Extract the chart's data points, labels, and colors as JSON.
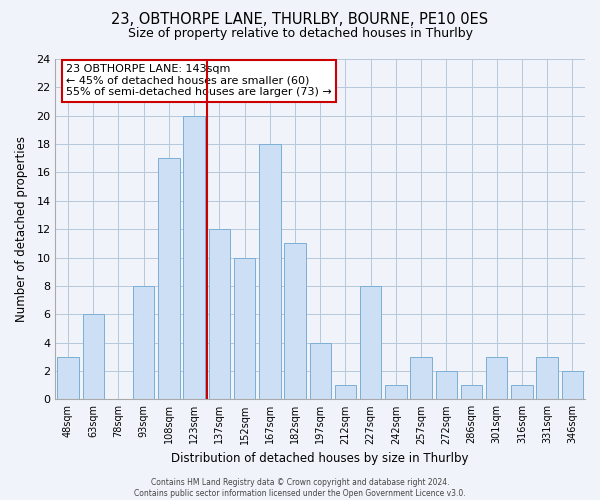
{
  "title": "23, OBTHORPE LANE, THURLBY, BOURNE, PE10 0ES",
  "subtitle": "Size of property relative to detached houses in Thurlby",
  "xlabel": "Distribution of detached houses by size in Thurlby",
  "ylabel": "Number of detached properties",
  "footer_lines": [
    "Contains HM Land Registry data © Crown copyright and database right 2024.",
    "Contains public sector information licensed under the Open Government Licence v3.0."
  ],
  "bar_labels": [
    "48sqm",
    "63sqm",
    "78sqm",
    "93sqm",
    "108sqm",
    "123sqm",
    "137sqm",
    "152sqm",
    "167sqm",
    "182sqm",
    "197sqm",
    "212sqm",
    "227sqm",
    "242sqm",
    "257sqm",
    "272sqm",
    "286sqm",
    "301sqm",
    "316sqm",
    "331sqm",
    "346sqm"
  ],
  "bar_values": [
    3,
    6,
    0,
    8,
    17,
    20,
    12,
    10,
    18,
    11,
    4,
    1,
    8,
    1,
    3,
    2,
    1,
    3,
    1,
    3,
    2
  ],
  "bar_color": "#ccdff5",
  "bar_edge_color": "#7bafd4",
  "grid_color": "#b8c8dc",
  "background_color": "#f0f4fa",
  "vline_x_index": 5,
  "vline_color": "#cc0000",
  "annotation_title": "23 OBTHORPE LANE: 143sqm",
  "annotation_line1": "← 45% of detached houses are smaller (60)",
  "annotation_line2": "55% of semi-detached houses are larger (73) →",
  "annotation_box_edge": "#cc0000",
  "ylim": [
    0,
    24
  ],
  "yticks": [
    0,
    2,
    4,
    6,
    8,
    10,
    12,
    14,
    16,
    18,
    20,
    22,
    24
  ]
}
